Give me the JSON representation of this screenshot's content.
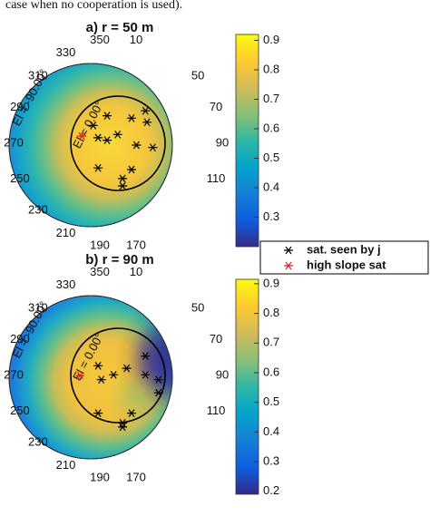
{
  "caption": "case when no cooperation is used).",
  "legend": [
    {
      "name": "sat. seen by j",
      "color": "#000000"
    },
    {
      "name": "high slope sat",
      "color": "#e02020"
    }
  ],
  "chart_data": [
    {
      "type": "polar_scatter",
      "title": "a) r = 50 m",
      "az_labels": [
        330,
        350,
        10,
        50,
        70,
        90,
        110,
        170,
        190,
        210,
        230,
        250,
        270,
        290,
        310
      ],
      "el_labels": [
        "El = -90.00°",
        "El = 0.00°"
      ],
      "xlim": [
        -1,
        1
      ],
      "ylim": [
        -1,
        1
      ],
      "series": [
        {
          "x": [
            0.67,
            0.5,
            0.2,
            0.03,
            0.33,
            0.09,
            0.2,
            0.69,
            0.76,
            0.56,
            0.5,
            0.09,
            0.39,
            0.39
          ],
          "y": [
            0.42,
            0.33,
            0.36,
            0.24,
            0.13,
            0.09,
            0.06,
            0.28,
            -0.03,
            0,
            -0.3,
            -0.28,
            -0.41,
            -0.5
          ]
        },
        {
          "x": [
            -0.11
          ],
          "y": [
            0.11
          ]
        }
      ],
      "colorbar": {
        "ylim": [
          0.2,
          0.92
        ],
        "yticks": [
          0.3,
          0.4,
          0.5,
          0.6,
          0.7,
          0.8,
          0.9
        ]
      }
    },
    {
      "type": "polar_scatter",
      "title": "b) r = 90 m",
      "az_labels": [
        330,
        350,
        10,
        50,
        70,
        90,
        110,
        170,
        190,
        210,
        230,
        250,
        270,
        290,
        310
      ],
      "el_labels": [
        "El = -90.00°",
        "El = 0.00°"
      ],
      "xlim": [
        -1,
        1
      ],
      "ylim": [
        -1,
        1
      ],
      "series": [
        {
          "x": [
            0.09,
            0.13,
            0.28,
            0.44,
            0.67,
            0.67,
            0.83,
            0.83,
            0.09,
            0.39,
            0.39,
            0.5
          ],
          "y": [
            0.14,
            -0.03,
            0.03,
            0.11,
            0.03,
            0.26,
            -0.03,
            -0.19,
            -0.44,
            -0.56,
            -0.61,
            -0.44
          ]
        },
        {
          "x": [
            -0.13
          ],
          "y": [
            0.02
          ]
        }
      ],
      "colorbar": {
        "ylim": [
          0.19,
          0.915
        ],
        "yticks": [
          0.2,
          0.3,
          0.4,
          0.5,
          0.6,
          0.7,
          0.8,
          0.9
        ]
      }
    }
  ]
}
